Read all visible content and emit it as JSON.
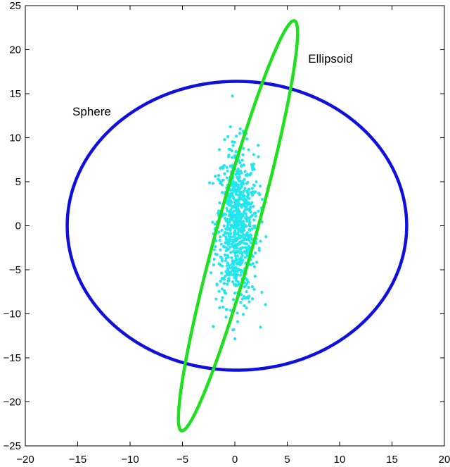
{
  "chart_data": {
    "type": "scatter",
    "title": "",
    "xlabel": "",
    "ylabel": "",
    "xlim": [
      -20,
      20
    ],
    "ylim": [
      -25,
      25
    ],
    "grid": false,
    "xticks": [
      -20,
      -15,
      -10,
      -5,
      0,
      5,
      10,
      15,
      20
    ],
    "yticks": [
      -25,
      -20,
      -15,
      -10,
      -5,
      0,
      5,
      10,
      15,
      20,
      25
    ],
    "xtick_labels": [
      "−20",
      "−15",
      "−10",
      "−5",
      "0",
      "5",
      "10",
      "15",
      "20"
    ],
    "ytick_labels": [
      "−25",
      "−20",
      "−15",
      "−10",
      "−5",
      "0",
      "5",
      "10",
      "15",
      "20",
      "25"
    ],
    "colors": {
      "sphere": "#1010dd",
      "ellipsoid": "#1ee01e",
      "points": "#22e6ee"
    },
    "annotations": [
      {
        "text": "Sphere",
        "x": -15.5,
        "y": 13
      },
      {
        "text": "Ellipsoid",
        "x": 7.0,
        "y": 19
      }
    ],
    "curves": [
      {
        "label": "Sphere",
        "shape": "ellipse",
        "center": [
          0.2,
          0.0
        ],
        "rx": 16.2,
        "ry": 16.4,
        "angle_deg": 0
      },
      {
        "label": "Ellipsoid",
        "shape": "ellipse",
        "center": [
          0.3,
          0.0
        ],
        "semi_major": 23.9,
        "semi_minor": 1.9,
        "major_axis_angle_deg": 77
      }
    ],
    "scatter": {
      "count": 800,
      "center": [
        0.2,
        0.0
      ],
      "std": [
        1.0,
        4.5
      ],
      "x_range": [
        -2.5,
        3.0
      ],
      "y_range": [
        -14.5,
        15.7
      ]
    }
  }
}
